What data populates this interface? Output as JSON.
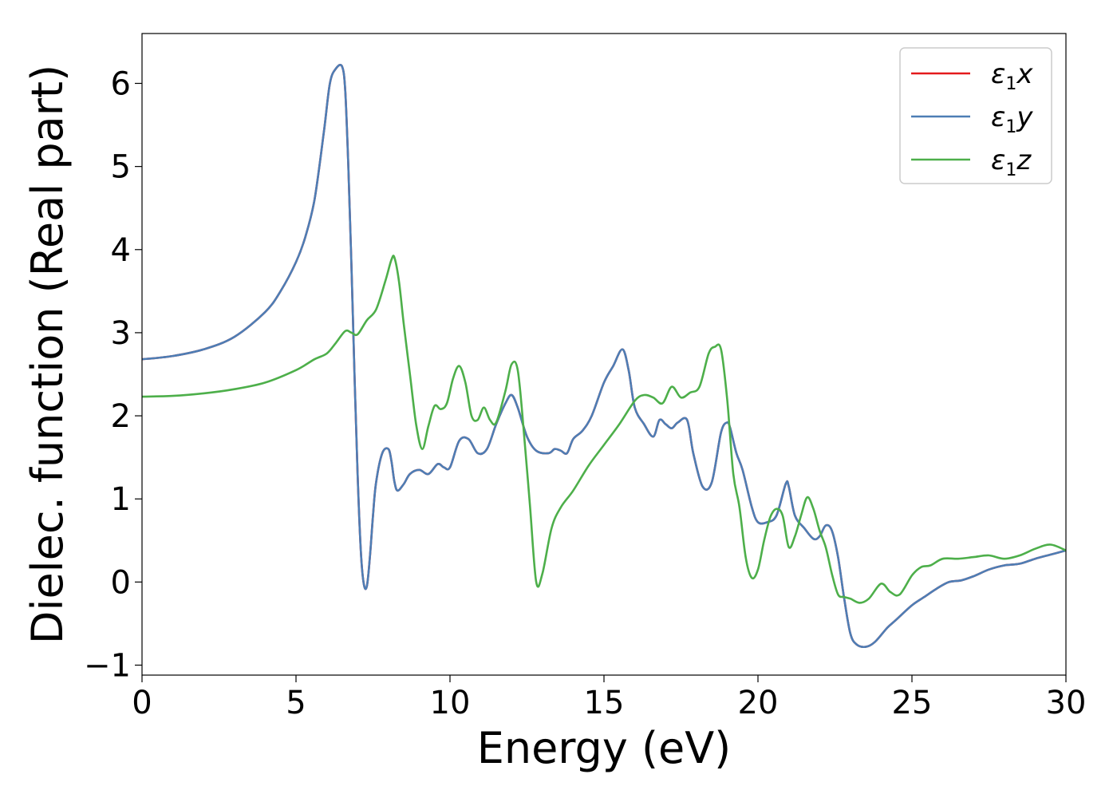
{
  "chart_data": {
    "type": "line",
    "xlabel": "Energy (eV)",
    "ylabel": "Dielec. function (Real part)",
    "xlim": [
      0,
      30
    ],
    "ylim": [
      -1.12,
      6.6
    ],
    "xticks": [
      0,
      5,
      10,
      15,
      20,
      25,
      30
    ],
    "xtick_labels": [
      "0",
      "5",
      "10",
      "15",
      "20",
      "25",
      "30"
    ],
    "yticks": [
      -1,
      0,
      1,
      2,
      3,
      4,
      5,
      6
    ],
    "ytick_labels": [
      "−1",
      "0",
      "1",
      "2",
      "3",
      "4",
      "5",
      "6"
    ],
    "grid": false,
    "legend_position": "top-right",
    "series": [
      {
        "name": "ε",
        "name_sub": "1",
        "name_var": "x",
        "color": "#e41a1c",
        "x": [
          0,
          1,
          2,
          3,
          4,
          4.5,
          5,
          5.3,
          5.6,
          5.9,
          6.1,
          6.3,
          6.5,
          6.6,
          6.7,
          6.8,
          6.9,
          7.0,
          7.1,
          7.2,
          7.3,
          7.4,
          7.5,
          7.6,
          7.8,
          8.0,
          8.1,
          8.2,
          8.3,
          8.5,
          8.7,
          9.0,
          9.3,
          9.6,
          9.8,
          10.0,
          10.3,
          10.6,
          10.9,
          11.2,
          11.5,
          11.8,
          12.0,
          12.2,
          12.5,
          12.8,
          13.2,
          13.4,
          13.6,
          13.8,
          14.0,
          14.3,
          14.6,
          15.0,
          15.3,
          15.6,
          15.8,
          16.0,
          16.3,
          16.6,
          16.8,
          17.0,
          17.2,
          17.4,
          17.7,
          17.9,
          18.2,
          18.5,
          18.8,
          19.0,
          19.1,
          19.3,
          19.5,
          19.8,
          20.0,
          20.3,
          20.6,
          20.9,
          21.0,
          21.2,
          21.5,
          21.8,
          22.0,
          22.2,
          22.4,
          22.6,
          22.8,
          23.0,
          23.2,
          23.5,
          23.8,
          24.2,
          24.5,
          25.0,
          25.4,
          25.8,
          26.2,
          26.6,
          27.0,
          27.5,
          28.0,
          28.5,
          29.0,
          29.5,
          30
        ],
        "y": [
          2.68,
          2.72,
          2.8,
          2.95,
          3.25,
          3.5,
          3.85,
          4.15,
          4.6,
          5.4,
          6.0,
          6.18,
          6.2,
          5.9,
          5.0,
          3.8,
          2.5,
          1.3,
          0.4,
          -0.02,
          -0.05,
          0.3,
          0.8,
          1.2,
          1.55,
          1.6,
          1.45,
          1.2,
          1.1,
          1.18,
          1.3,
          1.35,
          1.3,
          1.42,
          1.38,
          1.38,
          1.7,
          1.72,
          1.55,
          1.6,
          1.9,
          2.15,
          2.25,
          2.1,
          1.75,
          1.58,
          1.55,
          1.6,
          1.58,
          1.55,
          1.72,
          1.82,
          2.0,
          2.4,
          2.6,
          2.8,
          2.55,
          2.1,
          1.9,
          1.75,
          1.95,
          1.9,
          1.85,
          1.92,
          1.95,
          1.55,
          1.15,
          1.2,
          1.8,
          1.92,
          1.85,
          1.55,
          1.35,
          0.9,
          0.72,
          0.72,
          0.8,
          1.18,
          1.15,
          0.8,
          0.65,
          0.52,
          0.55,
          0.68,
          0.62,
          0.3,
          -0.2,
          -0.62,
          -0.75,
          -0.78,
          -0.72,
          -0.55,
          -0.45,
          -0.28,
          -0.18,
          -0.08,
          0.0,
          0.02,
          0.07,
          0.15,
          0.2,
          0.22,
          0.28,
          0.33,
          0.38
        ]
      },
      {
        "name": "ε",
        "name_sub": "1",
        "name_var": "y",
        "color": "#4d7eb5",
        "x": [
          0,
          1,
          2,
          3,
          4,
          4.5,
          5,
          5.3,
          5.6,
          5.9,
          6.1,
          6.3,
          6.5,
          6.6,
          6.7,
          6.8,
          6.9,
          7.0,
          7.1,
          7.2,
          7.3,
          7.4,
          7.5,
          7.6,
          7.8,
          8.0,
          8.1,
          8.2,
          8.3,
          8.5,
          8.7,
          9.0,
          9.3,
          9.6,
          9.8,
          10.0,
          10.3,
          10.6,
          10.9,
          11.2,
          11.5,
          11.8,
          12.0,
          12.2,
          12.5,
          12.8,
          13.2,
          13.4,
          13.6,
          13.8,
          14.0,
          14.3,
          14.6,
          15.0,
          15.3,
          15.6,
          15.8,
          16.0,
          16.3,
          16.6,
          16.8,
          17.0,
          17.2,
          17.4,
          17.7,
          17.9,
          18.2,
          18.5,
          18.8,
          19.0,
          19.1,
          19.3,
          19.5,
          19.8,
          20.0,
          20.3,
          20.6,
          20.9,
          21.0,
          21.2,
          21.5,
          21.8,
          22.0,
          22.2,
          22.4,
          22.6,
          22.8,
          23.0,
          23.2,
          23.5,
          23.8,
          24.2,
          24.5,
          25.0,
          25.4,
          25.8,
          26.2,
          26.6,
          27.0,
          27.5,
          28.0,
          28.5,
          29.0,
          29.5,
          30
        ],
        "y": [
          2.68,
          2.72,
          2.8,
          2.95,
          3.25,
          3.5,
          3.85,
          4.15,
          4.6,
          5.4,
          6.0,
          6.18,
          6.2,
          5.9,
          5.0,
          3.8,
          2.5,
          1.3,
          0.4,
          -0.02,
          -0.05,
          0.3,
          0.8,
          1.2,
          1.55,
          1.6,
          1.45,
          1.2,
          1.1,
          1.18,
          1.3,
          1.35,
          1.3,
          1.42,
          1.38,
          1.38,
          1.7,
          1.72,
          1.55,
          1.6,
          1.9,
          2.15,
          2.25,
          2.1,
          1.75,
          1.58,
          1.55,
          1.6,
          1.58,
          1.55,
          1.72,
          1.82,
          2.0,
          2.4,
          2.6,
          2.8,
          2.55,
          2.1,
          1.9,
          1.75,
          1.95,
          1.9,
          1.85,
          1.92,
          1.95,
          1.55,
          1.15,
          1.2,
          1.8,
          1.92,
          1.85,
          1.55,
          1.35,
          0.9,
          0.72,
          0.72,
          0.8,
          1.18,
          1.15,
          0.8,
          0.65,
          0.52,
          0.55,
          0.68,
          0.62,
          0.3,
          -0.2,
          -0.62,
          -0.75,
          -0.78,
          -0.72,
          -0.55,
          -0.45,
          -0.28,
          -0.18,
          -0.08,
          0.0,
          0.02,
          0.07,
          0.15,
          0.2,
          0.22,
          0.28,
          0.33,
          0.38
        ]
      },
      {
        "name": "ε",
        "name_sub": "1",
        "name_var": "z",
        "color": "#4daf4a",
        "x": [
          0,
          1,
          2,
          3,
          4,
          5,
          5.6,
          6.0,
          6.3,
          6.6,
          6.8,
          7.0,
          7.3,
          7.6,
          7.9,
          8.1,
          8.2,
          8.35,
          8.5,
          8.7,
          8.9,
          9.1,
          9.3,
          9.5,
          9.7,
          9.9,
          10.1,
          10.3,
          10.5,
          10.7,
          10.9,
          11.1,
          11.3,
          11.5,
          11.8,
          12.0,
          12.2,
          12.4,
          12.6,
          12.8,
          13.0,
          13.3,
          13.6,
          14.0,
          14.5,
          15.0,
          15.5,
          16.0,
          16.3,
          16.6,
          16.9,
          17.2,
          17.5,
          17.8,
          18.1,
          18.4,
          18.6,
          18.8,
          19.0,
          19.2,
          19.4,
          19.6,
          19.8,
          20.0,
          20.2,
          20.4,
          20.6,
          20.8,
          21.0,
          21.2,
          21.4,
          21.6,
          21.8,
          22.0,
          22.2,
          22.4,
          22.6,
          22.8,
          23.0,
          23.3,
          23.6,
          24.0,
          24.3,
          24.6,
          25.0,
          25.3,
          25.6,
          26.0,
          26.5,
          27.0,
          27.5,
          28.0,
          28.5,
          29.0,
          29.5,
          30
        ],
        "y": [
          2.23,
          2.24,
          2.27,
          2.32,
          2.4,
          2.55,
          2.68,
          2.75,
          2.88,
          3.02,
          3.0,
          2.98,
          3.15,
          3.28,
          3.62,
          3.88,
          3.9,
          3.6,
          3.1,
          2.5,
          1.9,
          1.6,
          1.88,
          2.12,
          2.08,
          2.15,
          2.45,
          2.6,
          2.4,
          2.0,
          1.95,
          2.1,
          1.95,
          1.92,
          2.3,
          2.62,
          2.55,
          1.8,
          0.9,
          0.0,
          0.1,
          0.65,
          0.9,
          1.1,
          1.4,
          1.65,
          1.9,
          2.18,
          2.25,
          2.22,
          2.15,
          2.35,
          2.22,
          2.28,
          2.35,
          2.75,
          2.83,
          2.8,
          2.2,
          1.3,
          0.9,
          0.3,
          0.05,
          0.15,
          0.5,
          0.78,
          0.88,
          0.8,
          0.42,
          0.55,
          0.8,
          1.02,
          0.88,
          0.62,
          0.42,
          0.1,
          -0.15,
          -0.18,
          -0.2,
          -0.25,
          -0.2,
          -0.02,
          -0.12,
          -0.15,
          0.08,
          0.18,
          0.2,
          0.28,
          0.28,
          0.3,
          0.32,
          0.28,
          0.32,
          0.4,
          0.45,
          0.38
        ]
      }
    ]
  }
}
